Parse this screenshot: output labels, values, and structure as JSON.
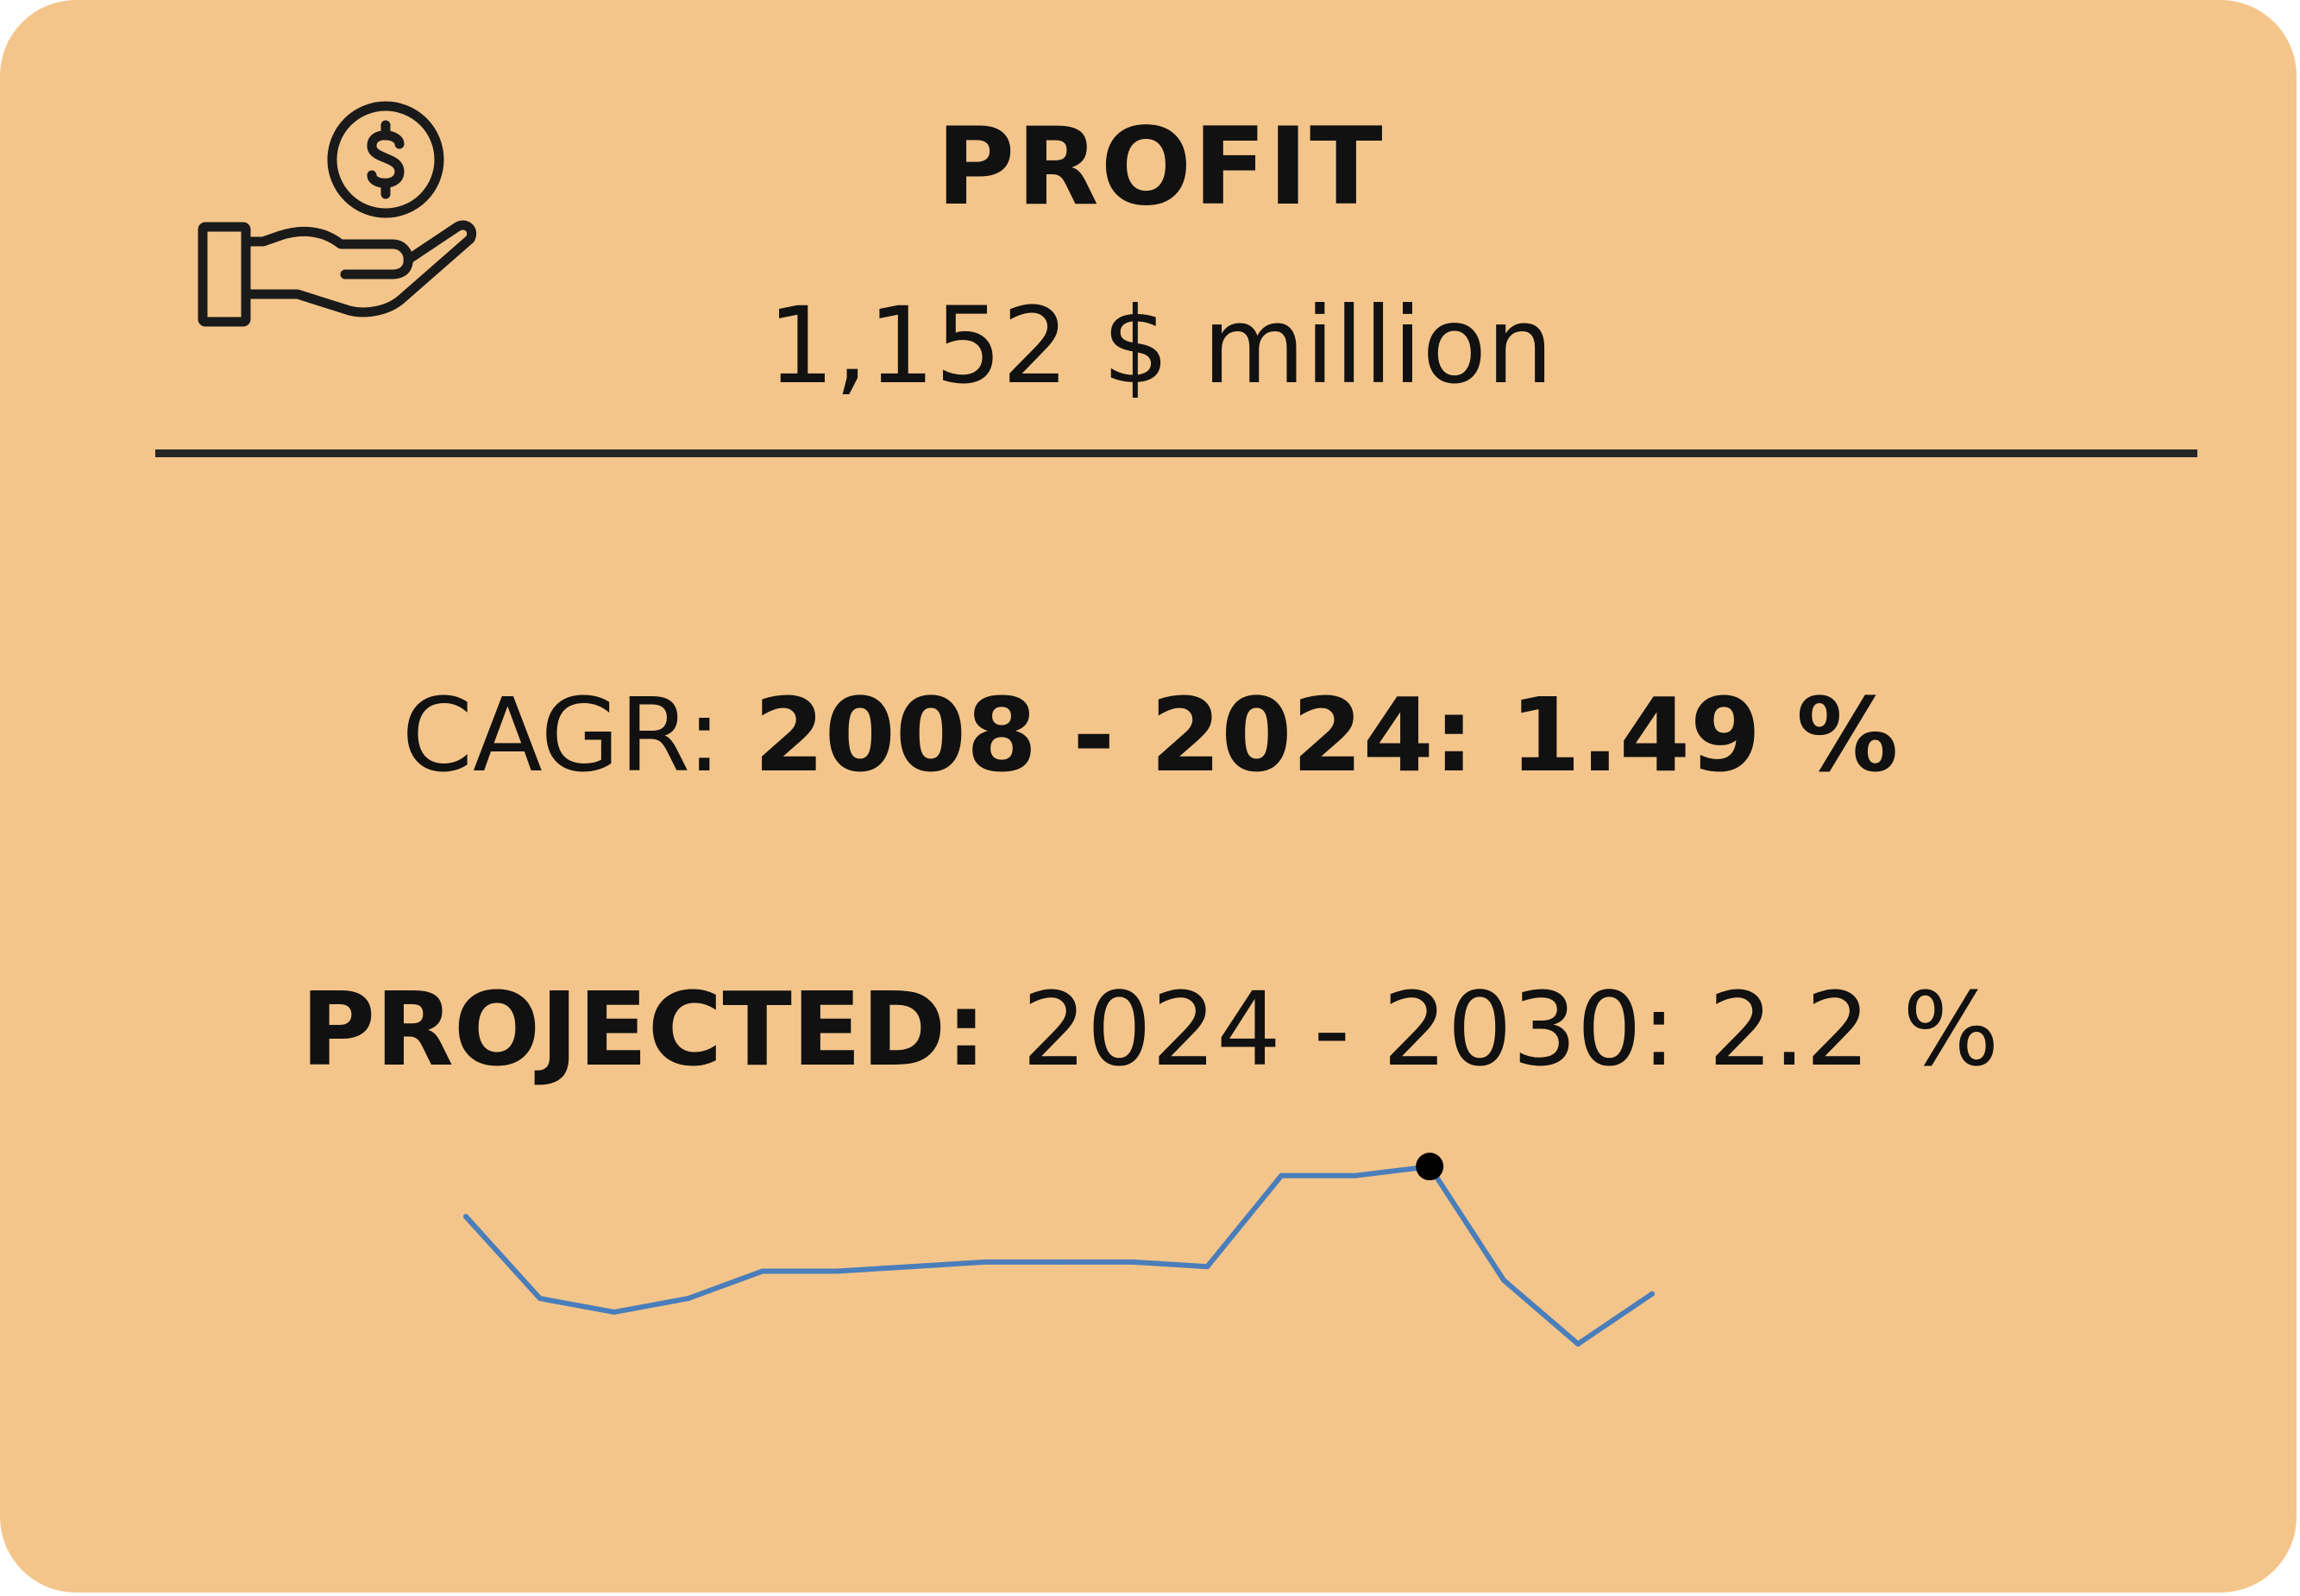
{
  "card": {
    "background": "#f4c58a",
    "icon": "hand-holding-dollar-icon",
    "title": "PROFIT",
    "value": "1,152 $ million"
  },
  "cagr": {
    "label": "CAGR: ",
    "period": "2008 - 2024: 1.49 %"
  },
  "projected": {
    "label": "PROJECTED: ",
    "period": "2024 - 2030: 2.2 %"
  },
  "chart_data": {
    "type": "line",
    "title": "",
    "xlabel": "",
    "ylabel": "",
    "axes_visible": false,
    "grid": false,
    "line_color": "#4a7ebb",
    "marker_color": "#000000",
    "values": [
      1136,
      1118,
      1115,
      1118,
      1124,
      1124,
      1125,
      1126,
      1126,
      1126,
      1125,
      1145,
      1145,
      1147,
      1122,
      1108,
      1119
    ],
    "highlight_index": 13,
    "ylim": [
      1100,
      1155
    ]
  }
}
